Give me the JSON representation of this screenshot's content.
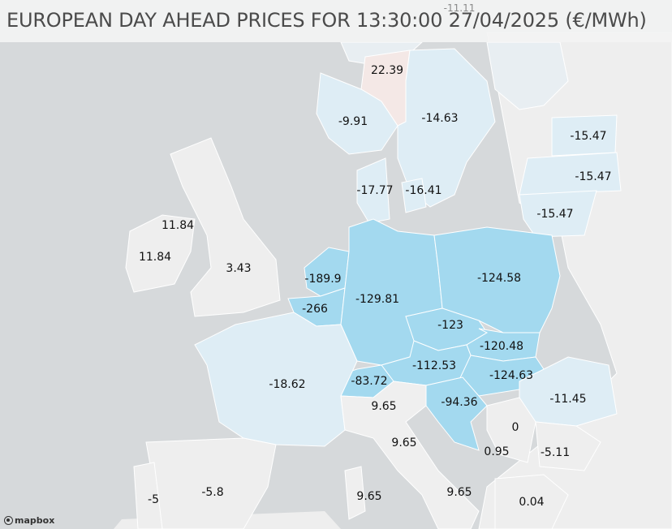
{
  "title": "EUROPEAN DAY AHEAD PRICES FOR 13:30:00 27/04/2025 (€/MWh)",
  "attribution": "mapbox",
  "colors": {
    "sea": "#d6d9db",
    "land": "#eeeeee",
    "high_negative": "#a3d9ef",
    "mild_negative": "#deedf5",
    "positive": "#f4e8e6",
    "neutral": "#efefef"
  },
  "prices": {
    "no_north": "-11.11",
    "no_mid": "22.39",
    "no_south": "-9.91",
    "se_3": "-14.63",
    "ee": "-15.47",
    "lv": "-15.47",
    "lt": "-15.47",
    "dk_west": "-17.77",
    "dk_east": "-16.41",
    "ie_north": "11.84",
    "ie": "11.84",
    "gb": "3.43",
    "nl": "-189.9",
    "be": "-266",
    "de": "-129.81",
    "pl": "-124.58",
    "cz": "-123",
    "sk": "-120.48",
    "at": "-112.53",
    "hu": "-124.63",
    "ch": "-83.72",
    "fr": "-18.62",
    "ro": "-11.45",
    "it_north": "9.65",
    "it_cnor": "9.65",
    "it_sud": "9.65",
    "it_sard": "9.65",
    "si_hr": "-94.36",
    "rs": "0",
    "me": "0.95",
    "bg": "-5.11",
    "gr": "0.04",
    "es": "-5.8",
    "pt": "-5"
  }
}
